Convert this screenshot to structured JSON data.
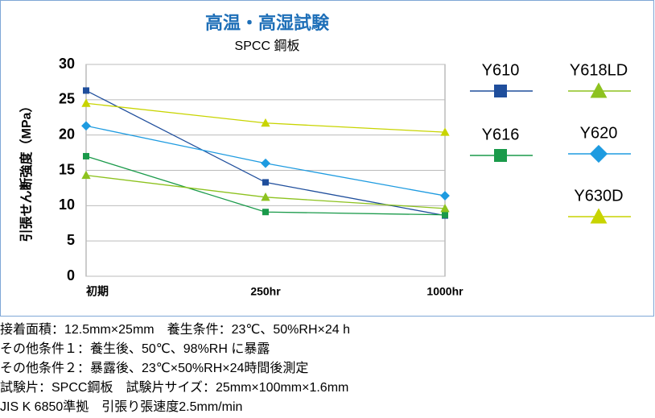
{
  "chart_data": {
    "type": "line",
    "title": "高温・高湿試験",
    "subtitle": "SPCC 鋼板",
    "y_label": "引張せん断強度（MPa）",
    "categories": [
      "初期",
      "250hr",
      "1000hr"
    ],
    "series": [
      {
        "name": "Y610",
        "color": "#1f4e9c",
        "marker": "square",
        "values": [
          26.3,
          13.3,
          8.6
        ]
      },
      {
        "name": "Y616",
        "color": "#1a9a4a",
        "marker": "square",
        "values": [
          17.0,
          9.1,
          8.7
        ]
      },
      {
        "name": "Y618LD",
        "color": "#8dc21f",
        "marker": "triangle",
        "values": [
          14.3,
          11.2,
          9.6
        ]
      },
      {
        "name": "Y620",
        "color": "#1e9be0",
        "marker": "diamond",
        "values": [
          21.3,
          16.0,
          11.4
        ]
      },
      {
        "name": "Y630D",
        "color": "#c8d400",
        "marker": "triangle",
        "values": [
          24.5,
          21.7,
          20.4
        ]
      }
    ],
    "ylim": [
      0,
      30
    ],
    "yticks": [
      0,
      5,
      10,
      15,
      20,
      25,
      30
    ],
    "grid": true
  },
  "notes": [
    "接着面積：12.5mm×25mm　養生条件：23℃、50%RH×24 h",
    "その他条件１：養生後、50℃、98%RH に暴露",
    "その他条件２：暴露後、23℃×50%RH×24時間後測定",
    "試験片：SPCC鋼板　試験片サイズ：25mm×100mm×1.6mm",
    "JIS K 6850準拠　引張り張速度2.5mm/min"
  ]
}
